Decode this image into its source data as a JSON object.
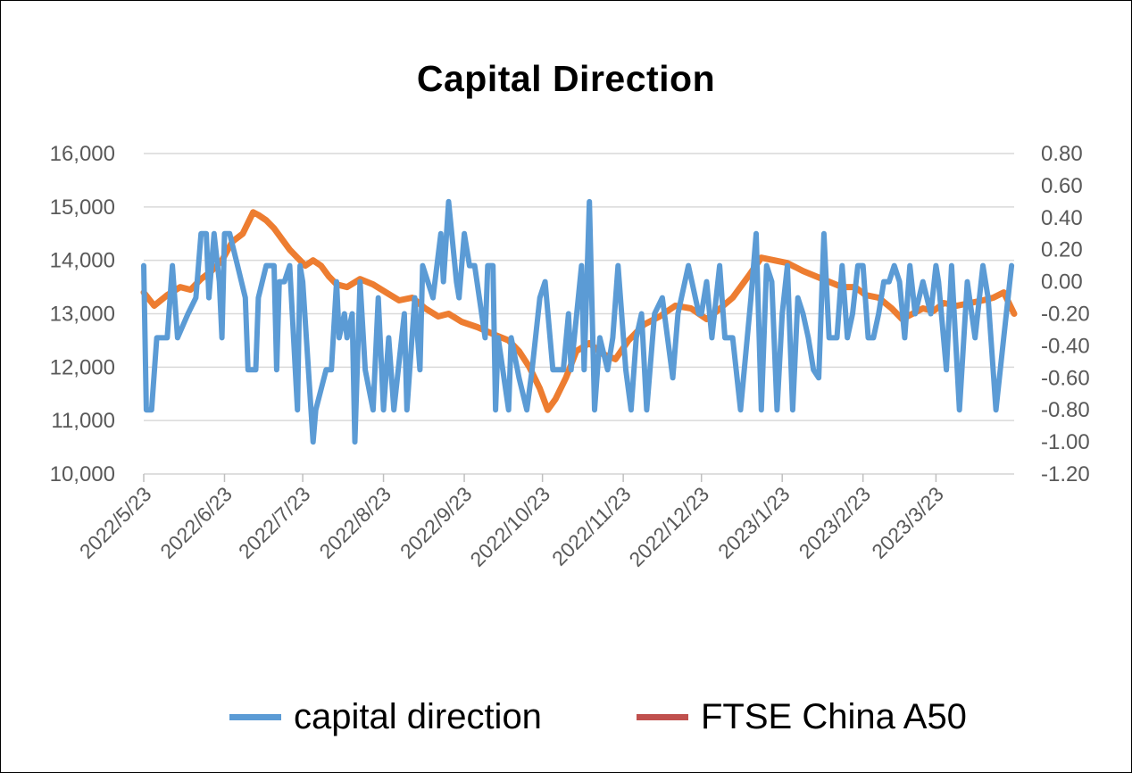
{
  "chart_data": {
    "type": "line",
    "title": "Capital Direction",
    "x_tick_labels": [
      "2022/5/23",
      "2022/6/23",
      "2022/7/23",
      "2022/8/23",
      "2022/9/23",
      "2022/10/23",
      "2022/11/23",
      "2022/12/23",
      "2023/1/23",
      "2023/2/23",
      "2023/3/23"
    ],
    "x_range": [
      "2022-05-23",
      "2023-04-22"
    ],
    "left_axis": {
      "ylim": [
        10000,
        16000
      ],
      "ticks": [
        "10,000",
        "11,000",
        "12,000",
        "13,000",
        "14,000",
        "15,000",
        "16,000"
      ],
      "values": [
        10000,
        11000,
        12000,
        13000,
        14000,
        15000,
        16000
      ]
    },
    "right_axis": {
      "ylim": [
        -1.2,
        0.8
      ],
      "ticks": [
        "-1.20",
        "-1.00",
        "-0.80",
        "-0.60",
        "-0.40",
        "-0.20",
        "0.00",
        "0.20",
        "0.40",
        "0.60",
        "0.80"
      ],
      "values": [
        -1.2,
        -1.0,
        -0.8,
        -0.6,
        -0.4,
        -0.2,
        0.0,
        0.2,
        0.4,
        0.6,
        0.8
      ]
    },
    "grid": true,
    "legend_position": "bottom",
    "series": [
      {
        "name": "capital direction",
        "axis": "right",
        "color": "#5B9BD5",
        "points": [
          [
            "2022-05-23",
            0.1
          ],
          [
            "2022-05-24",
            -0.8
          ],
          [
            "2022-05-26",
            -0.8
          ],
          [
            "2022-05-28",
            -0.35
          ],
          [
            "2022-06-01",
            -0.35
          ],
          [
            "2022-06-03",
            0.1
          ],
          [
            "2022-06-05",
            -0.35
          ],
          [
            "2022-06-09",
            -0.2
          ],
          [
            "2022-06-12",
            -0.1
          ],
          [
            "2022-06-14",
            0.3
          ],
          [
            "2022-06-16",
            0.3
          ],
          [
            "2022-06-17",
            -0.1
          ],
          [
            "2022-06-19",
            0.3
          ],
          [
            "2022-06-21",
            0.0
          ],
          [
            "2022-06-22",
            -0.35
          ],
          [
            "2022-06-23",
            0.3
          ],
          [
            "2022-06-25",
            0.3
          ],
          [
            "2022-06-28",
            0.1
          ],
          [
            "2022-07-01",
            -0.1
          ],
          [
            "2022-07-02",
            -0.55
          ],
          [
            "2022-07-05",
            -0.55
          ],
          [
            "2022-07-06",
            -0.1
          ],
          [
            "2022-07-09",
            0.1
          ],
          [
            "2022-07-12",
            0.1
          ],
          [
            "2022-07-13",
            -0.55
          ],
          [
            "2022-07-14",
            0.0
          ],
          [
            "2022-07-16",
            0.0
          ],
          [
            "2022-07-18",
            0.1
          ],
          [
            "2022-07-21",
            -0.8
          ],
          [
            "2022-07-22",
            0.1
          ],
          [
            "2022-07-23",
            0.0
          ],
          [
            "2022-07-27",
            -1.0
          ],
          [
            "2022-07-28",
            -0.8
          ],
          [
            "2022-08-01",
            -0.55
          ],
          [
            "2022-08-03",
            -0.55
          ],
          [
            "2022-08-05",
            0.0
          ],
          [
            "2022-08-06",
            -0.35
          ],
          [
            "2022-08-08",
            -0.2
          ],
          [
            "2022-08-09",
            -0.35
          ],
          [
            "2022-08-11",
            -0.2
          ],
          [
            "2022-08-12",
            -1.0
          ],
          [
            "2022-08-14",
            0.0
          ],
          [
            "2022-08-16",
            -0.55
          ],
          [
            "2022-08-19",
            -0.8
          ],
          [
            "2022-08-21",
            -0.1
          ],
          [
            "2022-08-23",
            -0.8
          ],
          [
            "2022-08-25",
            -0.35
          ],
          [
            "2022-08-27",
            -0.8
          ],
          [
            "2022-08-31",
            -0.2
          ],
          [
            "2022-09-01",
            -0.8
          ],
          [
            "2022-09-04",
            -0.1
          ],
          [
            "2022-09-06",
            -0.55
          ],
          [
            "2022-09-07",
            0.1
          ],
          [
            "2022-09-11",
            -0.1
          ],
          [
            "2022-09-14",
            0.3
          ],
          [
            "2022-09-15",
            0.0
          ],
          [
            "2022-09-17",
            0.5
          ],
          [
            "2022-09-20",
            0.0
          ],
          [
            "2022-09-21",
            -0.1
          ],
          [
            "2022-09-23",
            0.3
          ],
          [
            "2022-09-25",
            0.1
          ],
          [
            "2022-09-27",
            0.1
          ],
          [
            "2022-10-01",
            -0.35
          ],
          [
            "2022-10-02",
            0.1
          ],
          [
            "2022-10-04",
            0.1
          ],
          [
            "2022-10-05",
            -0.8
          ],
          [
            "2022-10-06",
            -0.35
          ],
          [
            "2022-10-10",
            -0.8
          ],
          [
            "2022-10-11",
            -0.35
          ],
          [
            "2022-10-14",
            -0.6
          ],
          [
            "2022-10-17",
            -0.8
          ],
          [
            "2022-10-19",
            -0.55
          ],
          [
            "2022-10-22",
            -0.1
          ],
          [
            "2022-10-24",
            0.0
          ],
          [
            "2022-10-27",
            -0.55
          ],
          [
            "2022-10-31",
            -0.55
          ],
          [
            "2022-11-02",
            -0.2
          ],
          [
            "2022-11-03",
            -0.55
          ],
          [
            "2022-11-07",
            0.1
          ],
          [
            "2022-11-08",
            -0.55
          ],
          [
            "2022-11-10",
            0.5
          ],
          [
            "2022-11-12",
            -0.8
          ],
          [
            "2022-11-14",
            -0.35
          ],
          [
            "2022-11-17",
            -0.55
          ],
          [
            "2022-11-19",
            -0.35
          ],
          [
            "2022-11-21",
            0.1
          ],
          [
            "2022-11-24",
            -0.55
          ],
          [
            "2022-11-26",
            -0.8
          ],
          [
            "2022-11-28",
            -0.35
          ],
          [
            "2022-11-30",
            -0.2
          ],
          [
            "2022-12-02",
            -0.8
          ],
          [
            "2022-12-05",
            -0.2
          ],
          [
            "2022-12-08",
            -0.1
          ],
          [
            "2022-12-12",
            -0.6
          ],
          [
            "2022-12-14",
            -0.2
          ],
          [
            "2022-12-18",
            0.1
          ],
          [
            "2022-12-22",
            -0.2
          ],
          [
            "2022-12-23",
            -0.2
          ],
          [
            "2022-12-25",
            0.0
          ],
          [
            "2022-12-27",
            -0.35
          ],
          [
            "2022-12-30",
            0.1
          ],
          [
            "2023-01-01",
            -0.35
          ],
          [
            "2023-01-04",
            -0.35
          ],
          [
            "2023-01-07",
            -0.8
          ],
          [
            "2023-01-11",
            -0.1
          ],
          [
            "2023-01-13",
            0.3
          ],
          [
            "2023-01-15",
            -0.8
          ],
          [
            "2023-01-17",
            0.1
          ],
          [
            "2023-01-19",
            0.0
          ],
          [
            "2023-01-21",
            -0.8
          ],
          [
            "2023-01-23",
            -0.2
          ],
          [
            "2023-01-25",
            0.1
          ],
          [
            "2023-01-27",
            -0.8
          ],
          [
            "2023-01-29",
            -0.1
          ],
          [
            "2023-01-31",
            -0.2
          ],
          [
            "2023-02-02",
            -0.35
          ],
          [
            "2023-02-04",
            -0.55
          ],
          [
            "2023-02-06",
            -0.6
          ],
          [
            "2023-02-08",
            0.3
          ],
          [
            "2023-02-10",
            -0.35
          ],
          [
            "2023-02-13",
            -0.35
          ],
          [
            "2023-02-15",
            0.1
          ],
          [
            "2023-02-17",
            -0.35
          ],
          [
            "2023-02-19",
            -0.2
          ],
          [
            "2023-02-21",
            0.1
          ],
          [
            "2023-02-23",
            0.1
          ],
          [
            "2023-02-25",
            -0.35
          ],
          [
            "2023-02-27",
            -0.35
          ],
          [
            "2023-03-01",
            -0.2
          ],
          [
            "2023-03-03",
            0.0
          ],
          [
            "2023-03-05",
            0.0
          ],
          [
            "2023-03-07",
            0.1
          ],
          [
            "2023-03-09",
            0.0
          ],
          [
            "2023-03-11",
            -0.35
          ],
          [
            "2023-03-13",
            0.1
          ],
          [
            "2023-03-15",
            -0.2
          ],
          [
            "2023-03-18",
            0.0
          ],
          [
            "2023-03-21",
            -0.2
          ],
          [
            "2023-03-23",
            0.1
          ],
          [
            "2023-03-24",
            0.0
          ],
          [
            "2023-03-27",
            -0.55
          ],
          [
            "2023-03-29",
            0.1
          ],
          [
            "2023-04-01",
            -0.8
          ],
          [
            "2023-04-04",
            0.0
          ],
          [
            "2023-04-07",
            -0.35
          ],
          [
            "2023-04-10",
            0.1
          ],
          [
            "2023-04-12",
            -0.1
          ],
          [
            "2023-04-15",
            -0.8
          ],
          [
            "2023-04-18",
            -0.35
          ],
          [
            "2023-04-21",
            0.1
          ]
        ]
      },
      {
        "name": "FTSE China A50",
        "axis": "left",
        "color": "#ED7D31",
        "legend_color": "#C0504D",
        "points": [
          [
            "2022-05-23",
            13400
          ],
          [
            "2022-05-27",
            13150
          ],
          [
            "2022-06-01",
            13350
          ],
          [
            "2022-06-06",
            13500
          ],
          [
            "2022-06-10",
            13450
          ],
          [
            "2022-06-14",
            13650
          ],
          [
            "2022-06-18",
            13800
          ],
          [
            "2022-06-22",
            14000
          ],
          [
            "2022-06-26",
            14350
          ],
          [
            "2022-06-30",
            14500
          ],
          [
            "2022-07-04",
            14900
          ],
          [
            "2022-07-06",
            14850
          ],
          [
            "2022-07-09",
            14750
          ],
          [
            "2022-07-12",
            14600
          ],
          [
            "2022-07-15",
            14400
          ],
          [
            "2022-07-18",
            14200
          ],
          [
            "2022-07-21",
            14050
          ],
          [
            "2022-07-24",
            13900
          ],
          [
            "2022-07-27",
            14000
          ],
          [
            "2022-07-30",
            13900
          ],
          [
            "2022-08-02",
            13700
          ],
          [
            "2022-08-05",
            13550
          ],
          [
            "2022-08-09",
            13500
          ],
          [
            "2022-08-14",
            13650
          ],
          [
            "2022-08-19",
            13550
          ],
          [
            "2022-08-24",
            13400
          ],
          [
            "2022-08-29",
            13250
          ],
          [
            "2022-09-03",
            13300
          ],
          [
            "2022-09-08",
            13100
          ],
          [
            "2022-09-13",
            12950
          ],
          [
            "2022-09-17",
            13000
          ],
          [
            "2022-09-22",
            12850
          ],
          [
            "2022-09-28",
            12750
          ],
          [
            "2022-10-05",
            12600
          ],
          [
            "2022-10-10",
            12500
          ],
          [
            "2022-10-14",
            12300
          ],
          [
            "2022-10-18",
            12000
          ],
          [
            "2022-10-22",
            11600
          ],
          [
            "2022-10-25",
            11200
          ],
          [
            "2022-10-28",
            11400
          ],
          [
            "2022-11-01",
            11800
          ],
          [
            "2022-11-05",
            12300
          ],
          [
            "2022-11-10",
            12450
          ],
          [
            "2022-11-15",
            12250
          ],
          [
            "2022-11-20",
            12150
          ],
          [
            "2022-11-25",
            12500
          ],
          [
            "2022-12-01",
            12800
          ],
          [
            "2022-12-07",
            12950
          ],
          [
            "2022-12-13",
            13150
          ],
          [
            "2022-12-19",
            13100
          ],
          [
            "2022-12-25",
            12900
          ],
          [
            "2022-12-29",
            13050
          ],
          [
            "2023-01-04",
            13300
          ],
          [
            "2023-01-10",
            13700
          ],
          [
            "2023-01-15",
            14050
          ],
          [
            "2023-01-20",
            14000
          ],
          [
            "2023-01-25",
            13950
          ],
          [
            "2023-01-31",
            13800
          ],
          [
            "2023-02-05",
            13700
          ],
          [
            "2023-02-10",
            13600
          ],
          [
            "2023-02-15",
            13500
          ],
          [
            "2023-02-20",
            13500
          ],
          [
            "2023-02-24",
            13350
          ],
          [
            "2023-03-01",
            13300
          ],
          [
            "2023-03-06",
            13100
          ],
          [
            "2023-03-10",
            12900
          ],
          [
            "2023-03-14",
            13000
          ],
          [
            "2023-03-18",
            13100
          ],
          [
            "2023-03-22",
            13050
          ],
          [
            "2023-03-26",
            13200
          ],
          [
            "2023-03-31",
            13150
          ],
          [
            "2023-04-05",
            13200
          ],
          [
            "2023-04-10",
            13250
          ],
          [
            "2023-04-14",
            13300
          ],
          [
            "2023-04-18",
            13400
          ],
          [
            "2023-04-22",
            13000
          ]
        ]
      }
    ]
  }
}
